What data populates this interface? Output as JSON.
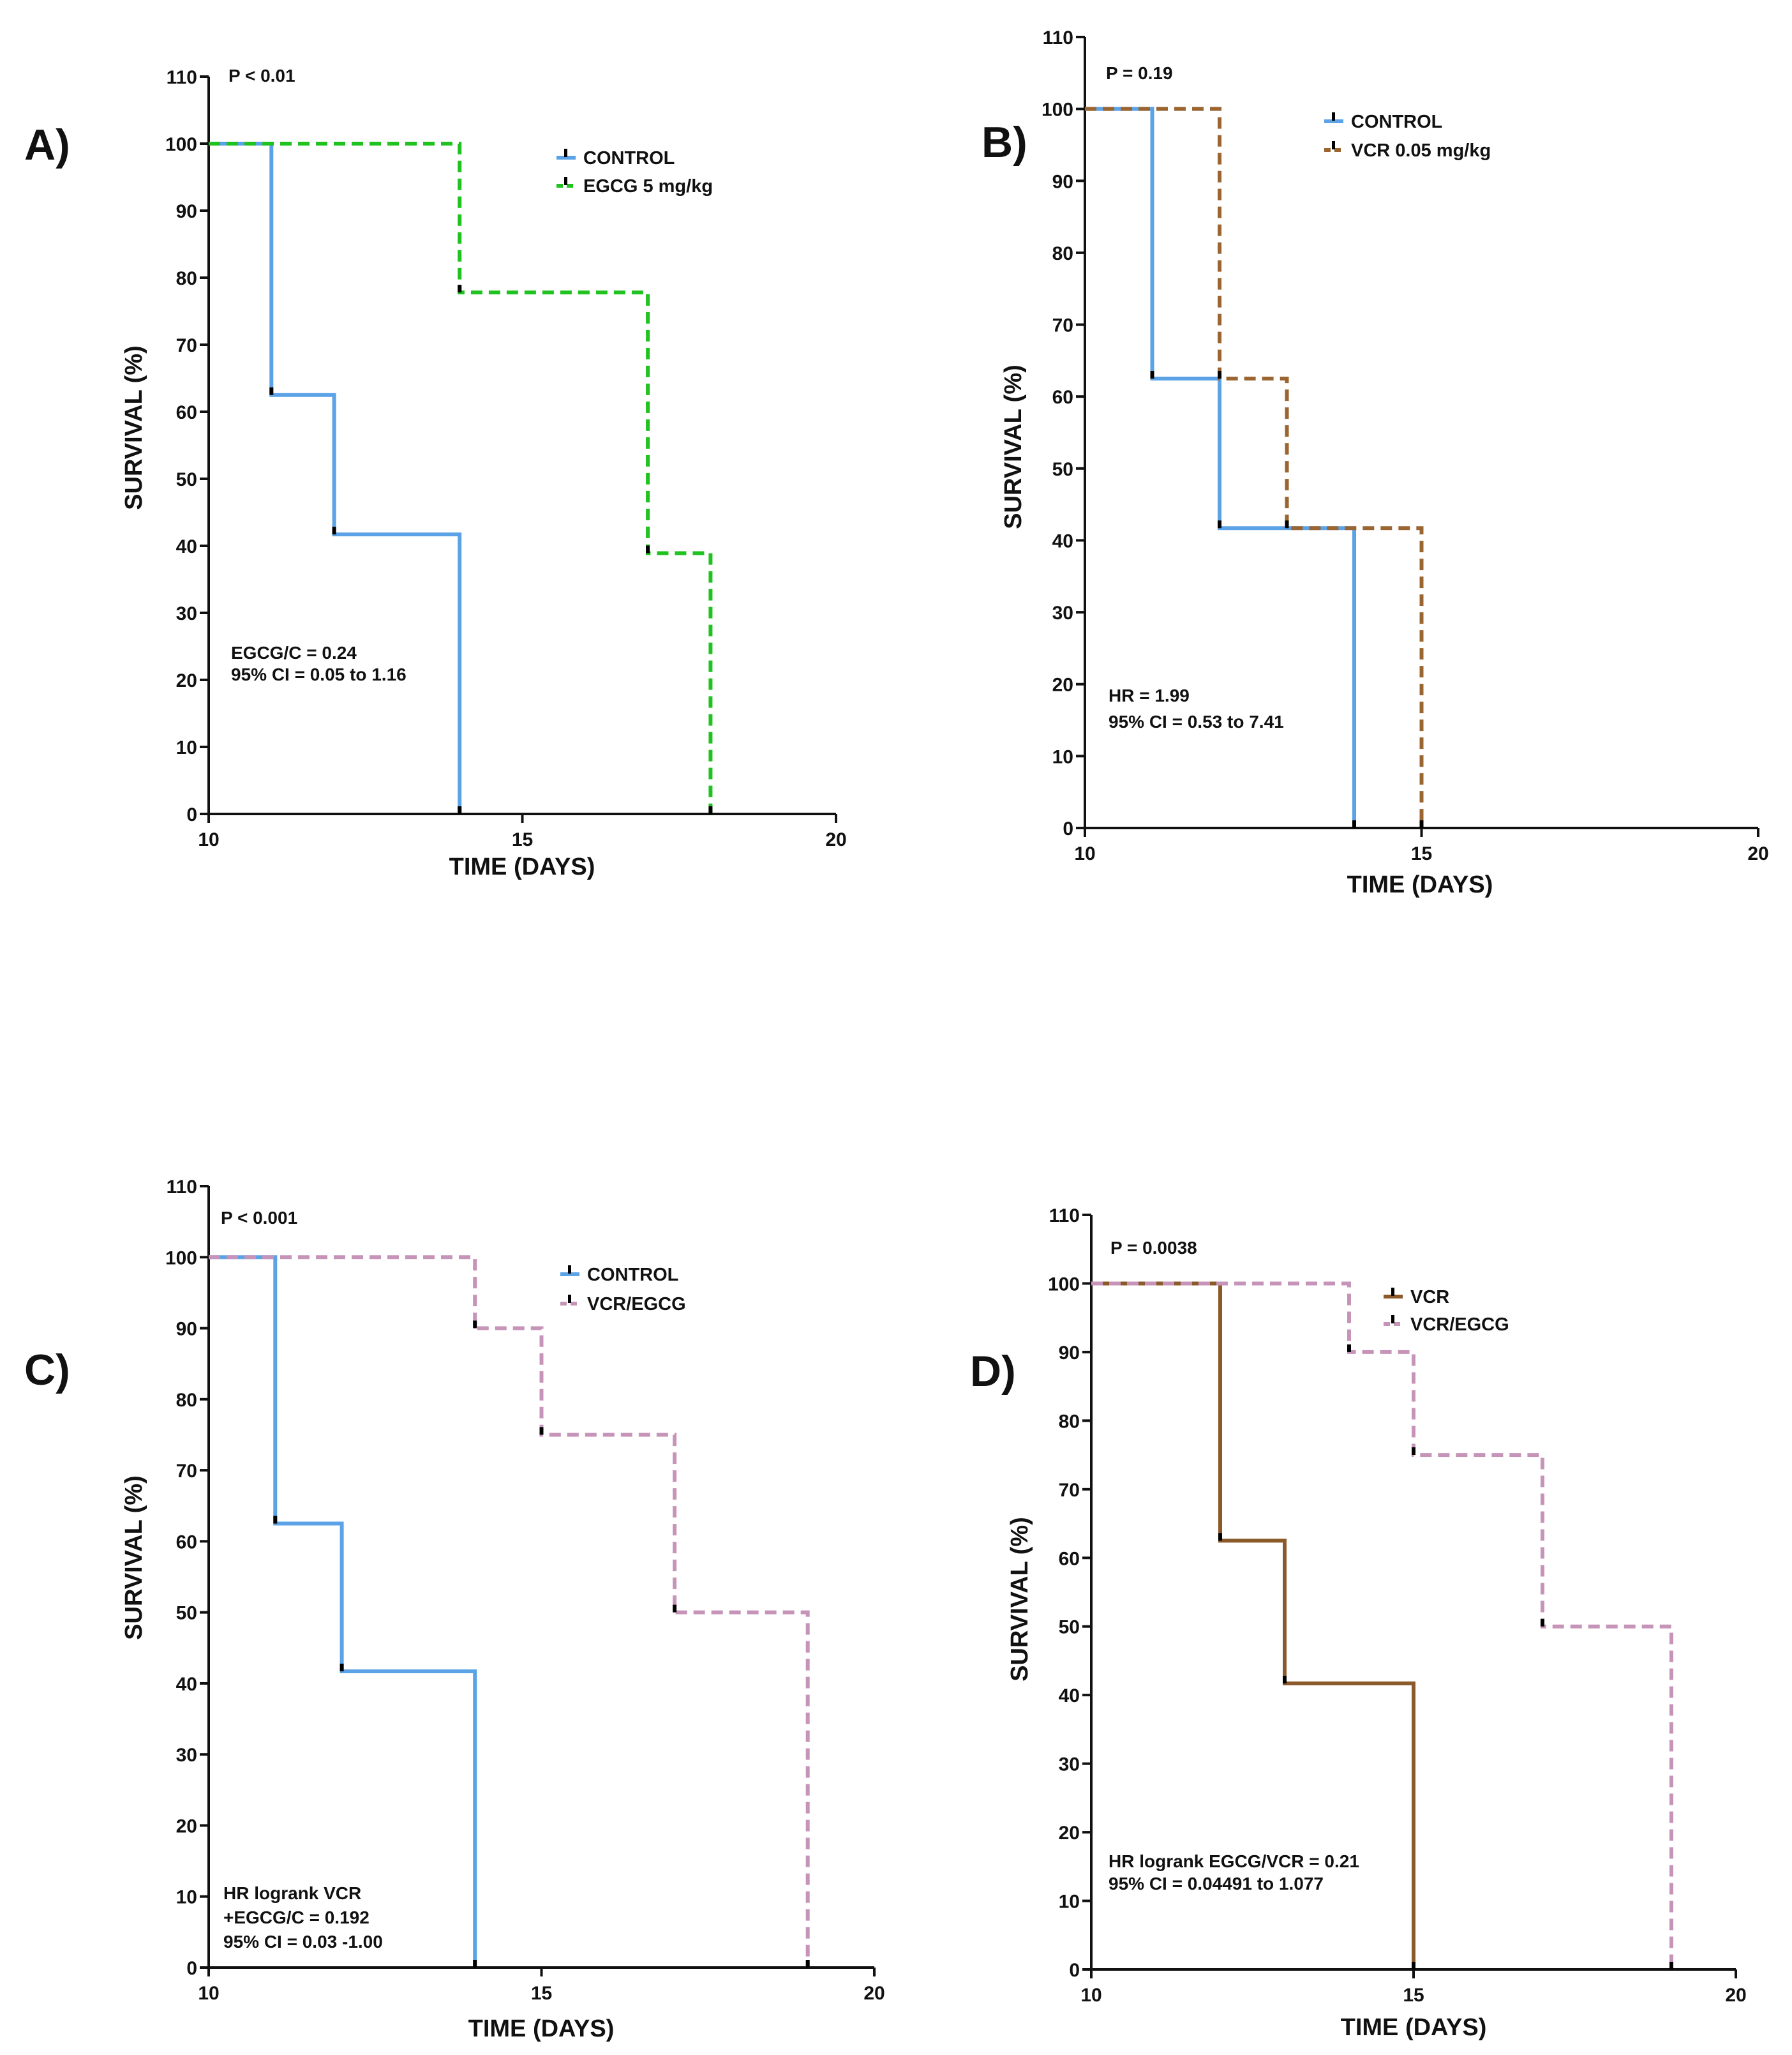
{
  "figure": {
    "colors": {
      "control": "#5ba3e6",
      "egcg": "#1fc21f",
      "vcr": "#8b5a2b",
      "vcr_dash": "#9a6530",
      "vcr_egcg": "#c694b8",
      "axis": "#111111"
    }
  },
  "chart_data": [
    {
      "panel_label": "A)",
      "type": "line",
      "subtype": "kaplan-meier step",
      "xlabel": "TIME  (DAYS)",
      "ylabel": "SURVIVAL (%)",
      "xlim": [
        10,
        20
      ],
      "ylim": [
        0,
        110
      ],
      "xticks": [
        10,
        15,
        20
      ],
      "yticks": [
        0,
        10,
        20,
        30,
        40,
        50,
        60,
        70,
        80,
        90,
        100,
        110
      ],
      "annotations": {
        "p_value": "P < 0.01",
        "stats": [
          "EGCG/C = 0.24",
          "95% CI = 0.05 to 1.16"
        ]
      },
      "series": [
        {
          "name": "CONTROL",
          "color": "#5ba3e6",
          "dash": false,
          "x": [
            10,
            11,
            12,
            14
          ],
          "y": [
            100,
            62.5,
            41.7,
            0
          ],
          "censor": [
            [
              11,
              62.5
            ],
            [
              12,
              41.7
            ],
            [
              14,
              0
            ]
          ]
        },
        {
          "name": "EGCG 5 mg/kg",
          "color": "#1fc21f",
          "dash": true,
          "x": [
            10,
            14,
            17,
            18
          ],
          "y": [
            100,
            77.8,
            38.9,
            0
          ],
          "censor": [
            [
              14,
              77.8
            ],
            [
              17,
              38.9
            ],
            [
              18,
              0
            ]
          ]
        }
      ]
    },
    {
      "panel_label": "B)",
      "type": "line",
      "subtype": "kaplan-meier step",
      "xlabel": "TIME  (DAYS)",
      "ylabel": "SURVIVAL (%)",
      "xlim": [
        10,
        20
      ],
      "ylim": [
        0,
        110
      ],
      "xticks": [
        10,
        15,
        20
      ],
      "yticks": [
        0,
        10,
        20,
        30,
        40,
        50,
        60,
        70,
        80,
        90,
        100,
        110
      ],
      "annotations": {
        "p_value": "P = 0.19",
        "stats": [
          "HR  = 1.99",
          "95% CI = 0.53 to 7.41"
        ]
      },
      "series": [
        {
          "name": "CONTROL",
          "color": "#5ba3e6",
          "dash": false,
          "x": [
            10,
            11,
            12,
            14
          ],
          "y": [
            100,
            62.5,
            41.7,
            0
          ],
          "censor": [
            [
              11,
              62.5
            ],
            [
              12,
              41.7
            ],
            [
              14,
              0
            ]
          ]
        },
        {
          "name": "VCR 0.05 mg/kg",
          "color": "#9a6530",
          "dash": true,
          "x": [
            10,
            12,
            13,
            15
          ],
          "y": [
            100,
            62.5,
            41.7,
            0
          ],
          "censor": [
            [
              12,
              62.5
            ],
            [
              13,
              41.7
            ],
            [
              15,
              0
            ]
          ]
        }
      ]
    },
    {
      "panel_label": "C)",
      "type": "line",
      "subtype": "kaplan-meier step",
      "xlabel": "TIME  (DAYS)",
      "ylabel": "SURVIVAL (%)",
      "xlim": [
        10,
        20
      ],
      "ylim": [
        0,
        110
      ],
      "xticks": [
        10,
        15,
        20
      ],
      "yticks": [
        0,
        10,
        20,
        30,
        40,
        50,
        60,
        70,
        80,
        90,
        100,
        110
      ],
      "annotations": {
        "p_value": "P <  0.001",
        "stats": [
          "HR logrank VCR",
          "+EGCG/C = 0.192",
          "95% CI = 0.03 -1.00"
        ]
      },
      "series": [
        {
          "name": "CONTROL",
          "color": "#5ba3e6",
          "dash": false,
          "x": [
            10,
            11,
            12,
            14
          ],
          "y": [
            100,
            62.5,
            41.7,
            0
          ],
          "censor": [
            [
              11,
              62.5
            ],
            [
              12,
              41.7
            ],
            [
              14,
              0
            ]
          ]
        },
        {
          "name": "VCR/EGCG",
          "color": "#c694b8",
          "dash": true,
          "x": [
            10,
            14,
            15,
            17,
            19
          ],
          "y": [
            100,
            90,
            75,
            50,
            0
          ],
          "censor": [
            [
              14,
              90
            ],
            [
              15,
              75
            ],
            [
              17,
              50
            ],
            [
              19,
              0
            ]
          ]
        }
      ]
    },
    {
      "panel_label": "D)",
      "type": "line",
      "subtype": "kaplan-meier step",
      "xlabel": "TIME  (DAYS)",
      "ylabel": "SURVIVAL (%)",
      "xlim": [
        10,
        20
      ],
      "ylim": [
        0,
        110
      ],
      "xticks": [
        10,
        15,
        20
      ],
      "yticks": [
        0,
        10,
        20,
        30,
        40,
        50,
        60,
        70,
        80,
        90,
        100,
        110
      ],
      "annotations": {
        "p_value": "P = 0.0038",
        "stats": [
          "HR logrank EGCG/VCR = 0.21",
          "95% CI = 0.04491 to 1.077"
        ]
      },
      "series": [
        {
          "name": "VCR",
          "color": "#8b5a2b",
          "dash": false,
          "x": [
            10,
            12,
            13,
            15
          ],
          "y": [
            100,
            62.5,
            41.7,
            0
          ],
          "censor": [
            [
              12,
              62.5
            ],
            [
              13,
              41.7
            ],
            [
              15,
              0
            ]
          ]
        },
        {
          "name": "VCR/EGCG",
          "color": "#c694b8",
          "dash": true,
          "x": [
            10,
            14,
            15,
            17,
            19
          ],
          "y": [
            100,
            90,
            75,
            50,
            0
          ],
          "censor": [
            [
              14,
              90
            ],
            [
              15,
              75
            ],
            [
              17,
              50
            ],
            [
              19,
              0
            ]
          ]
        }
      ]
    }
  ]
}
